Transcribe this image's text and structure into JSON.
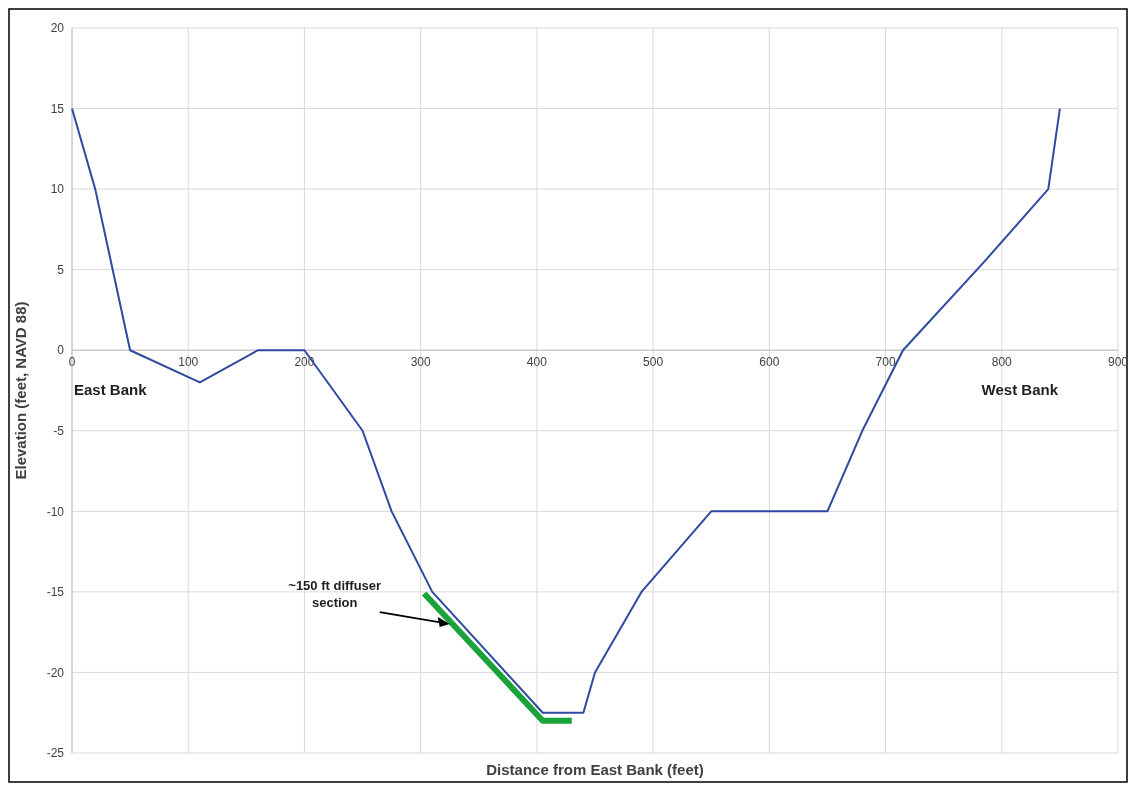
{
  "chart_data": {
    "type": "line",
    "xlabel": "Distance from East Bank (feet)",
    "ylabel": "Elevation (feet, NAVD 88)",
    "xlim": [
      0,
      900
    ],
    "xticks": [
      0,
      100,
      200,
      300,
      400,
      500,
      600,
      700,
      800,
      900
    ],
    "ylim": [
      -25,
      20
    ],
    "yticks": [
      -25,
      -20,
      -15,
      -10,
      -5,
      0,
      5,
      10,
      15,
      20
    ],
    "grid": true,
    "marker": "none",
    "line_style": "solid",
    "series": [
      {
        "color": "#2e4aa0",
        "x": [
          0,
          20,
          50,
          110,
          160,
          200,
          250,
          275,
          310,
          405,
          440,
          450,
          490,
          550,
          650,
          680,
          715,
          785,
          840,
          850
        ],
        "values": [
          15,
          10,
          0,
          -2,
          0,
          0,
          -5,
          -10,
          -15,
          -22.5,
          -22.5,
          -20,
          -15,
          -10,
          -10,
          -5,
          0,
          5.5,
          10,
          15
        ]
      },
      {
        "color": "#1aa33a",
        "x": [
          303,
          405,
          430
        ],
        "values": [
          -15.1,
          -23,
          -23
        ]
      }
    ],
    "annotations": [
      "East Bank",
      "West Bank",
      {
        "text": "~150 ft diffuser section",
        "x": 325,
        "y": -17
      }
    ]
  }
}
